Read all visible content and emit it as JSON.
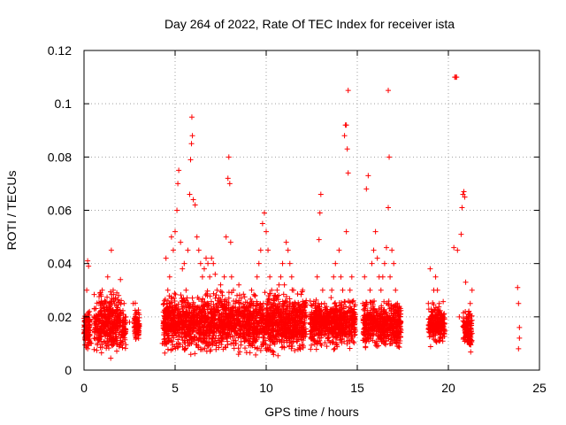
{
  "chart_data": {
    "type": "scatter",
    "title": "Day 264 of 2022, Rate Of TEC Index for receiver ista",
    "xlabel": "GPS time / hours",
    "ylabel": "ROTI / TECUs",
    "xlim": [
      0,
      25
    ],
    "ylim": [
      0,
      0.12
    ],
    "xticks": [
      0,
      5,
      10,
      15,
      20,
      25
    ],
    "yticks": [
      0,
      0.02,
      0.04,
      0.06,
      0.08,
      0.1,
      0.12
    ],
    "xtick_labels": [
      "0",
      "5",
      "10",
      "15",
      "20",
      "25"
    ],
    "ytick_labels": [
      "0",
      "0.02",
      "0.04",
      "0.06",
      "0.08",
      "0.1",
      "0.12"
    ],
    "grid": true,
    "marker": "+",
    "color": "#ff0000",
    "series": [
      {
        "points": [
          [
            0.05,
            0.012
          ],
          [
            0.1,
            0.02
          ],
          [
            0.15,
            0.03
          ],
          [
            0.2,
            0.041
          ],
          [
            0.25,
            0.039
          ],
          [
            0.3,
            0.022
          ],
          [
            0.35,
            0.015
          ],
          [
            0.4,
            0.01
          ],
          [
            0.2,
            0.008
          ],
          [
            0.6,
            0.015
          ],
          [
            0.7,
            0.02
          ],
          [
            0.8,
            0.012
          ],
          [
            0.9,
            0.025
          ],
          [
            1.0,
            0.03
          ],
          [
            1.1,
            0.018
          ],
          [
            1.2,
            0.022
          ],
          [
            1.3,
            0.035
          ],
          [
            1.4,
            0.025
          ],
          [
            1.5,
            0.045
          ],
          [
            1.6,
            0.03
          ],
          [
            1.7,
            0.02
          ],
          [
            1.8,
            0.015
          ],
          [
            1.9,
            0.028
          ],
          [
            2.0,
            0.034
          ],
          [
            2.2,
            0.025
          ],
          [
            2.3,
            0.02
          ],
          [
            2.5,
            0.018
          ],
          [
            2.7,
            0.025
          ],
          [
            2.8,
            0.015
          ],
          [
            4.3,
            0.01
          ],
          [
            4.4,
            0.025
          ],
          [
            4.5,
            0.042
          ],
          [
            4.6,
            0.03
          ],
          [
            4.7,
            0.035
          ],
          [
            4.8,
            0.05
          ],
          [
            4.9,
            0.045
          ],
          [
            5.0,
            0.052
          ],
          [
            5.1,
            0.06
          ],
          [
            5.15,
            0.07
          ],
          [
            5.2,
            0.075
          ],
          [
            5.3,
            0.048
          ],
          [
            5.4,
            0.038
          ],
          [
            5.5,
            0.04
          ],
          [
            5.6,
            0.03
          ],
          [
            5.7,
            0.045
          ],
          [
            5.8,
            0.066
          ],
          [
            5.85,
            0.079
          ],
          [
            5.9,
            0.085
          ],
          [
            5.95,
            0.088
          ],
          [
            5.92,
            0.095
          ],
          [
            6.0,
            0.064
          ],
          [
            6.1,
            0.062
          ],
          [
            6.2,
            0.05
          ],
          [
            6.3,
            0.045
          ],
          [
            6.4,
            0.04
          ],
          [
            6.5,
            0.035
          ],
          [
            6.6,
            0.038
          ],
          [
            6.7,
            0.042
          ],
          [
            6.8,
            0.04
          ],
          [
            6.9,
            0.035
          ],
          [
            7.0,
            0.042
          ],
          [
            7.1,
            0.04
          ],
          [
            7.2,
            0.036
          ],
          [
            7.3,
            0.03
          ],
          [
            7.4,
            0.025
          ],
          [
            7.5,
            0.032
          ],
          [
            7.6,
            0.028
          ],
          [
            7.7,
            0.035
          ],
          [
            7.8,
            0.05
          ],
          [
            7.9,
            0.072
          ],
          [
            7.95,
            0.08
          ],
          [
            8.0,
            0.07
          ],
          [
            8.05,
            0.048
          ],
          [
            8.1,
            0.035
          ],
          [
            8.2,
            0.03
          ],
          [
            8.3,
            0.025
          ],
          [
            8.4,
            0.028
          ],
          [
            8.5,
            0.032
          ],
          [
            8.6,
            0.025
          ],
          [
            8.7,
            0.02
          ],
          [
            8.8,
            0.022
          ],
          [
            8.9,
            0.018
          ],
          [
            9.0,
            0.02
          ],
          [
            9.1,
            0.025
          ],
          [
            9.2,
            0.03
          ],
          [
            9.3,
            0.025
          ],
          [
            9.4,
            0.028
          ],
          [
            9.5,
            0.035
          ],
          [
            9.6,
            0.04
          ],
          [
            9.7,
            0.045
          ],
          [
            9.8,
            0.055
          ],
          [
            9.9,
            0.059
          ],
          [
            10.0,
            0.052
          ],
          [
            10.1,
            0.045
          ],
          [
            10.2,
            0.035
          ],
          [
            10.3,
            0.03
          ],
          [
            10.4,
            0.025
          ],
          [
            10.5,
            0.028
          ],
          [
            10.6,
            0.03
          ],
          [
            10.7,
            0.032
          ],
          [
            10.8,
            0.035
          ],
          [
            10.9,
            0.04
          ],
          [
            11.0,
            0.032
          ],
          [
            11.1,
            0.048
          ],
          [
            11.2,
            0.045
          ],
          [
            11.3,
            0.04
          ],
          [
            11.4,
            0.035
          ],
          [
            11.5,
            0.03
          ],
          [
            11.6,
            0.025
          ],
          [
            11.7,
            0.02
          ],
          [
            11.8,
            0.015
          ],
          [
            11.9,
            0.012
          ],
          [
            12.0,
            0.03
          ],
          [
            12.1,
            0.025
          ],
          [
            12.2,
            0.02
          ],
          [
            12.5,
            0.015
          ],
          [
            12.7,
            0.025
          ],
          [
            12.8,
            0.035
          ],
          [
            12.9,
            0.049
          ],
          [
            12.95,
            0.059
          ],
          [
            13.0,
            0.066
          ],
          [
            13.1,
            0.03
          ],
          [
            13.2,
            0.025
          ],
          [
            13.4,
            0.02
          ],
          [
            13.6,
            0.03
          ],
          [
            13.7,
            0.035
          ],
          [
            13.8,
            0.04
          ],
          [
            14.0,
            0.045
          ],
          [
            14.1,
            0.035
          ],
          [
            14.2,
            0.03
          ],
          [
            14.3,
            0.088
          ],
          [
            14.35,
            0.092
          ],
          [
            14.4,
            0.092
          ],
          [
            14.45,
            0.083
          ],
          [
            14.5,
            0.105
          ],
          [
            14.5,
            0.074
          ],
          [
            14.4,
            0.052
          ],
          [
            14.6,
            0.03
          ],
          [
            14.7,
            0.035
          ],
          [
            15.3,
            0.025
          ],
          [
            15.4,
            0.035
          ],
          [
            15.5,
            0.068
          ],
          [
            15.6,
            0.073
          ],
          [
            15.7,
            0.03
          ],
          [
            15.8,
            0.04
          ],
          [
            15.9,
            0.045
          ],
          [
            16.0,
            0.052
          ],
          [
            16.1,
            0.042
          ],
          [
            16.2,
            0.035
          ],
          [
            16.3,
            0.03
          ],
          [
            16.4,
            0.035
          ],
          [
            16.5,
            0.04
          ],
          [
            16.6,
            0.046
          ],
          [
            16.7,
            0.061
          ],
          [
            16.75,
            0.08
          ],
          [
            16.7,
            0.105
          ],
          [
            16.8,
            0.035
          ],
          [
            16.9,
            0.045
          ],
          [
            17.0,
            0.04
          ],
          [
            17.1,
            0.03
          ],
          [
            17.2,
            0.025
          ],
          [
            17.3,
            0.02
          ],
          [
            17.4,
            0.015
          ],
          [
            18.9,
            0.025
          ],
          [
            19.0,
            0.038
          ],
          [
            19.1,
            0.02
          ],
          [
            19.2,
            0.03
          ],
          [
            19.3,
            0.035
          ],
          [
            19.4,
            0.03
          ],
          [
            19.5,
            0.025
          ],
          [
            19.6,
            0.02
          ],
          [
            19.8,
            0.015
          ],
          [
            20.4,
            0.11
          ],
          [
            20.45,
            0.11
          ],
          [
            20.35,
            0.11
          ],
          [
            20.3,
            0.046
          ],
          [
            20.5,
            0.045
          ],
          [
            20.6,
            0.02
          ],
          [
            20.7,
            0.051
          ],
          [
            20.75,
            0.061
          ],
          [
            20.8,
            0.066
          ],
          [
            20.85,
            0.067
          ],
          [
            20.9,
            0.065
          ],
          [
            20.95,
            0.033
          ],
          [
            21.0,
            0.02
          ],
          [
            21.1,
            0.015
          ],
          [
            21.2,
            0.025
          ],
          [
            21.3,
            0.03
          ],
          [
            23.8,
            0.031
          ],
          [
            23.85,
            0.025
          ],
          [
            23.9,
            0.016
          ],
          [
            23.9,
            0.012
          ],
          [
            23.85,
            0.008
          ]
        ],
        "dense_bands": [
          {
            "x": [
              0.0,
              0.35
            ],
            "y": [
              0.006,
              0.022
            ]
          },
          {
            "x": [
              0.55,
              2.05
            ],
            "y": [
              0.004,
              0.028
            ]
          },
          {
            "x": [
              2.1,
              2.3
            ],
            "y": [
              0.006,
              0.022
            ]
          },
          {
            "x": [
              2.75,
              3.05
            ],
            "y": [
              0.007,
              0.024
            ]
          },
          {
            "x": [
              4.35,
              12.2
            ],
            "y": [
              0.004,
              0.028
            ]
          },
          {
            "x": [
              12.4,
              14.9
            ],
            "y": [
              0.006,
              0.026
            ]
          },
          {
            "x": [
              15.3,
              17.4
            ],
            "y": [
              0.006,
              0.026
            ]
          },
          {
            "x": [
              18.9,
              19.8
            ],
            "y": [
              0.008,
              0.024
            ]
          },
          {
            "x": [
              20.8,
              21.3
            ],
            "y": [
              0.006,
              0.022
            ]
          }
        ]
      }
    ]
  }
}
